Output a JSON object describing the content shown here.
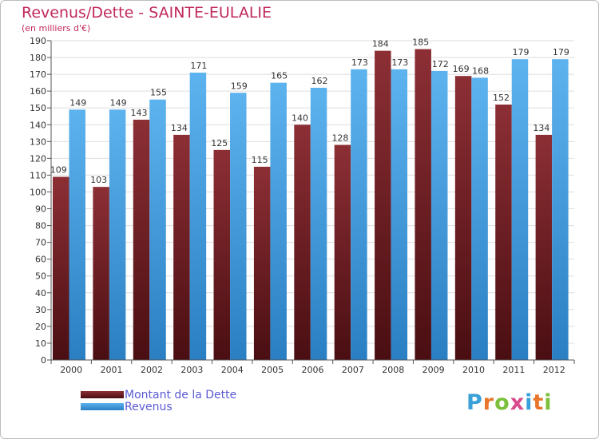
{
  "chart_data": {
    "type": "bar",
    "title": "Revenus/Dette - SAINTE-EULALIE",
    "subtitle": "(en milliers d'€)",
    "categories": [
      "2000",
      "2001",
      "2002",
      "2003",
      "2004",
      "2005",
      "2006",
      "2007",
      "2008",
      "2009",
      "2010",
      "2011",
      "2012"
    ],
    "series": [
      {
        "name": "Montant de la Dette",
        "values": [
          109,
          103,
          143,
          134,
          125,
          115,
          140,
          128,
          184,
          185,
          169,
          152,
          134
        ],
        "color": "#7a1f24"
      },
      {
        "name": "Revenus",
        "values": [
          149,
          149,
          155,
          171,
          159,
          165,
          162,
          173,
          173,
          172,
          168,
          179,
          179
        ],
        "color": "#3e98dc"
      }
    ],
    "ylim": [
      0,
      190
    ],
    "yticks": [
      0,
      10,
      20,
      30,
      40,
      50,
      60,
      70,
      80,
      90,
      100,
      110,
      120,
      130,
      140,
      150,
      160,
      170,
      180,
      190
    ],
    "grid": true,
    "legend_position": "bottom-left"
  },
  "colors": {
    "title": "#c0285c",
    "debt_top": "#8c2f35",
    "debt_bottom": "#4a0e12",
    "revenue_top": "#5db3ee",
    "revenue_bottom": "#2a7fc3",
    "grid": "#dddddd",
    "legend_text": "#5a5ad6"
  },
  "logo": {
    "text": "Proxiti",
    "letter_colors": [
      "#3aa0d8",
      "#e8762c",
      "#7bbf3b",
      "#d94a8c",
      "#3aa0d8",
      "#e8762c",
      "#7bbf3b"
    ]
  }
}
